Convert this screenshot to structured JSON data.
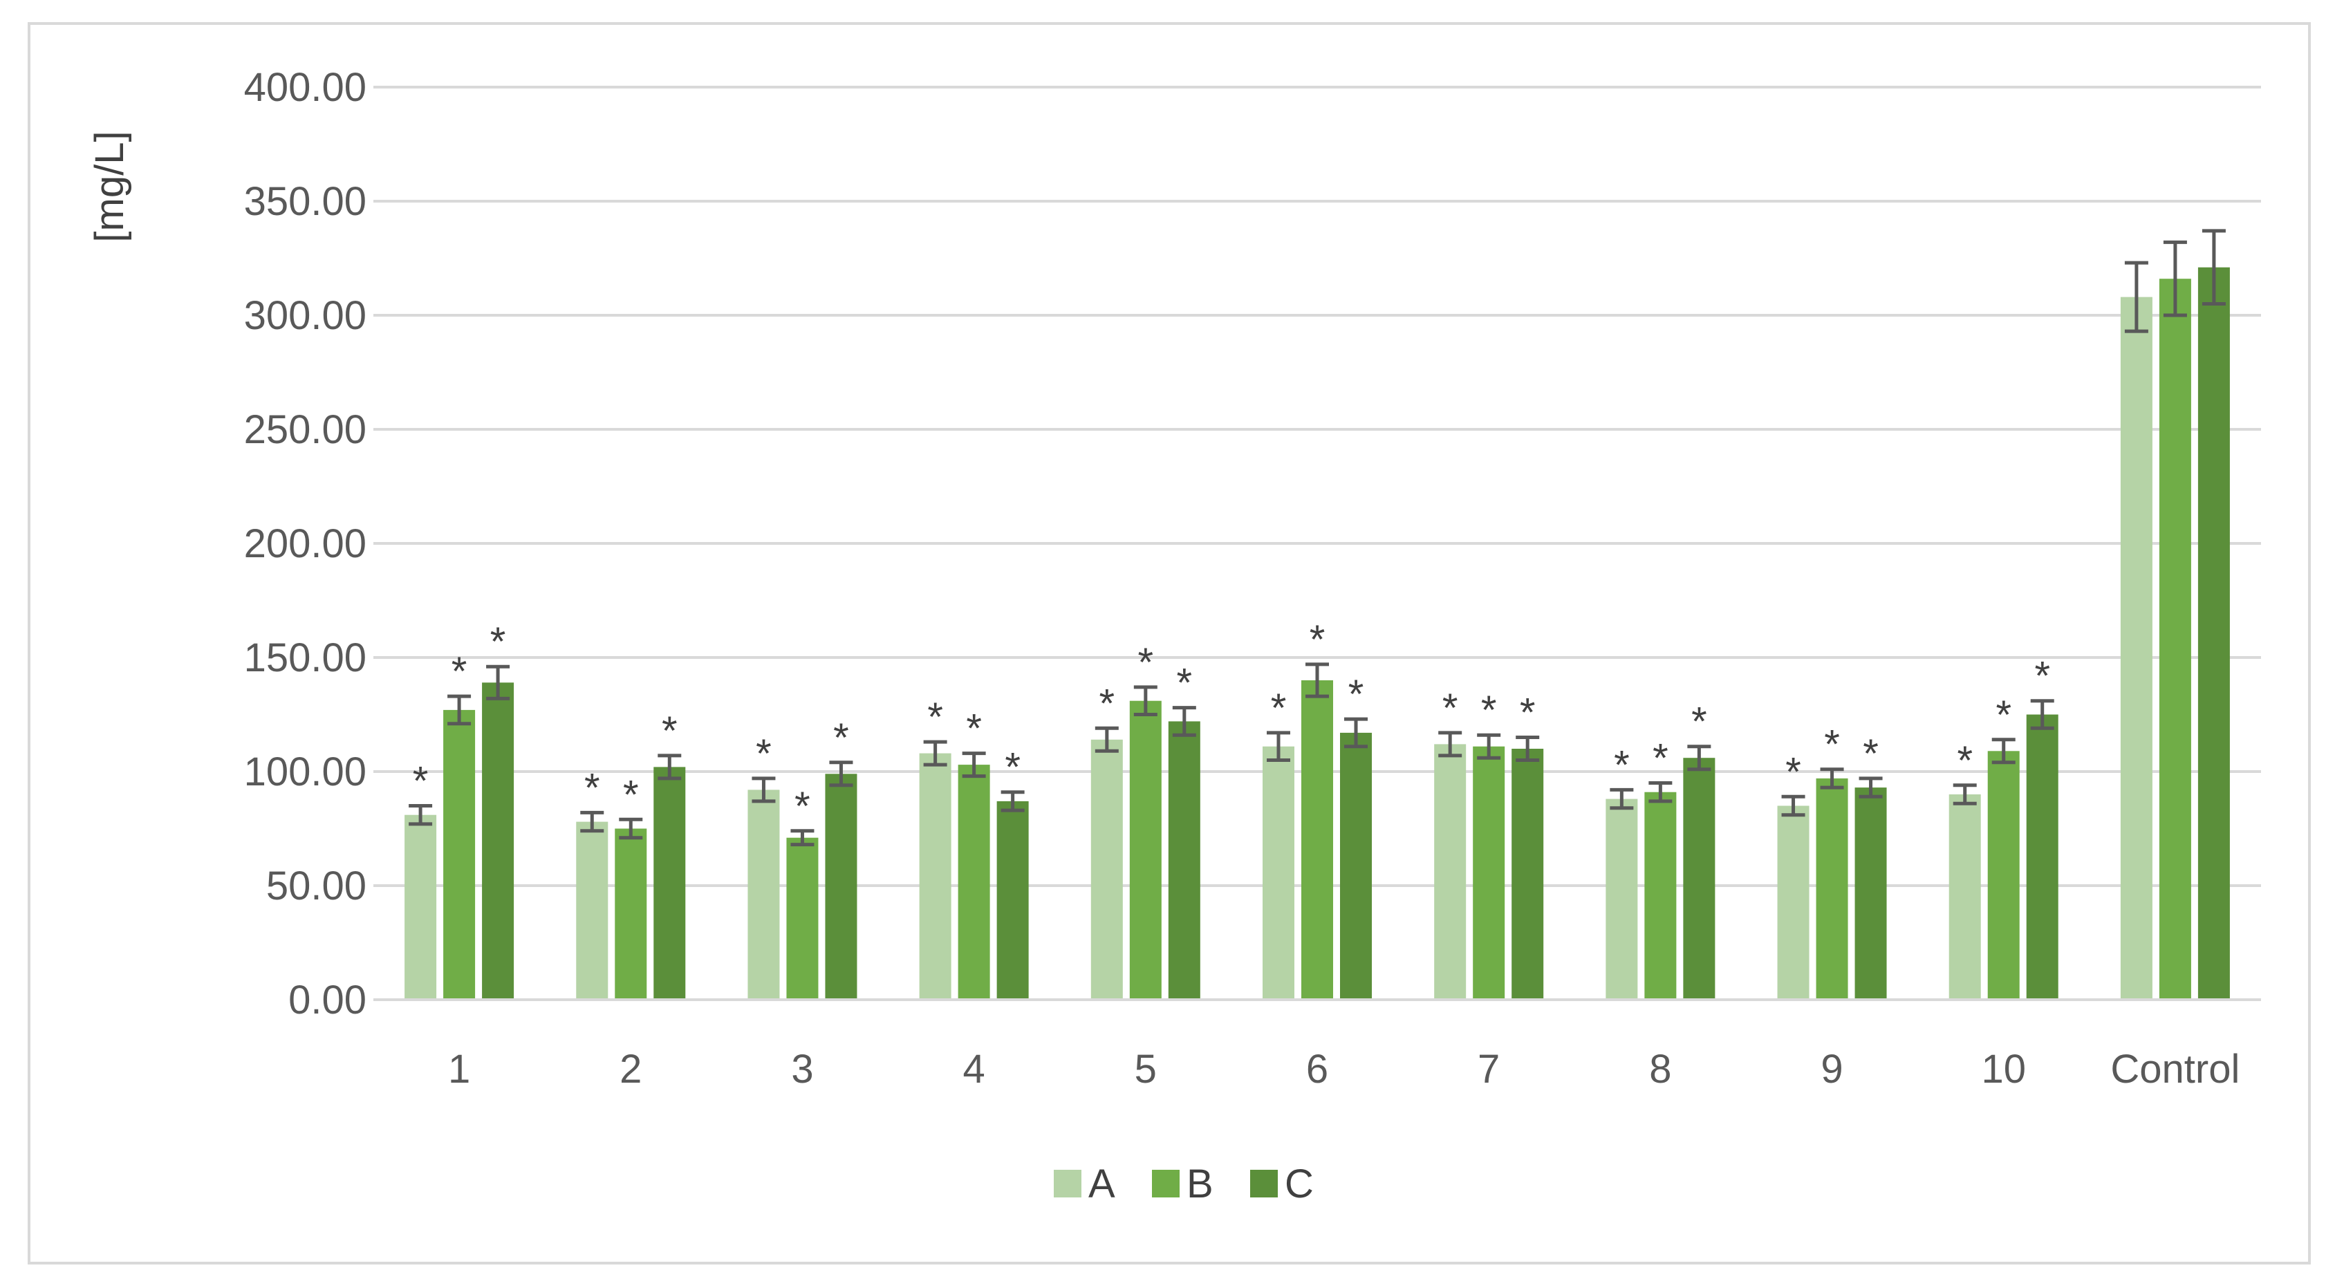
{
  "colors": {
    "A": "#b5d3a6",
    "B": "#70ad47",
    "C": "#5b8f3a",
    "grid": "#d9d9d9",
    "error_bar": "#595959",
    "frame": "#d9d9d9"
  },
  "chart_data": {
    "type": "bar",
    "title": "",
    "xlabel": "",
    "ylabel": "[mg/L]",
    "ylim": [
      0,
      400
    ],
    "yticks": [
      "0.00",
      "50.00",
      "100.00",
      "150.00",
      "200.00",
      "250.00",
      "300.00",
      "350.00",
      "400.00"
    ],
    "grid": true,
    "legend_position": "bottom",
    "categories": [
      "1",
      "2",
      "3",
      "4",
      "5",
      "6",
      "7",
      "8",
      "9",
      "10",
      "Control"
    ],
    "series": [
      {
        "name": "A",
        "values": [
          81,
          78,
          92,
          108,
          114,
          111,
          112,
          88,
          85,
          90,
          308
        ],
        "errors": [
          4,
          4,
          5,
          5,
          5,
          6,
          5,
          4,
          4,
          4,
          15
        ],
        "significant": [
          true,
          true,
          true,
          true,
          true,
          true,
          true,
          true,
          true,
          true,
          false
        ]
      },
      {
        "name": "B",
        "values": [
          127,
          75,
          71,
          103,
          131,
          140,
          111,
          91,
          97,
          109,
          316
        ],
        "errors": [
          6,
          4,
          3,
          5,
          6,
          7,
          5,
          4,
          4,
          5,
          16
        ],
        "significant": [
          true,
          true,
          true,
          true,
          true,
          true,
          true,
          true,
          true,
          true,
          false
        ]
      },
      {
        "name": "C",
        "values": [
          139,
          102,
          99,
          87,
          122,
          117,
          110,
          106,
          93,
          125,
          321
        ],
        "errors": [
          7,
          5,
          5,
          4,
          6,
          6,
          5,
          5,
          4,
          6,
          16
        ],
        "significant": [
          true,
          true,
          true,
          true,
          true,
          true,
          true,
          true,
          true,
          true,
          false
        ]
      }
    ],
    "annotation_symbol": "*"
  }
}
